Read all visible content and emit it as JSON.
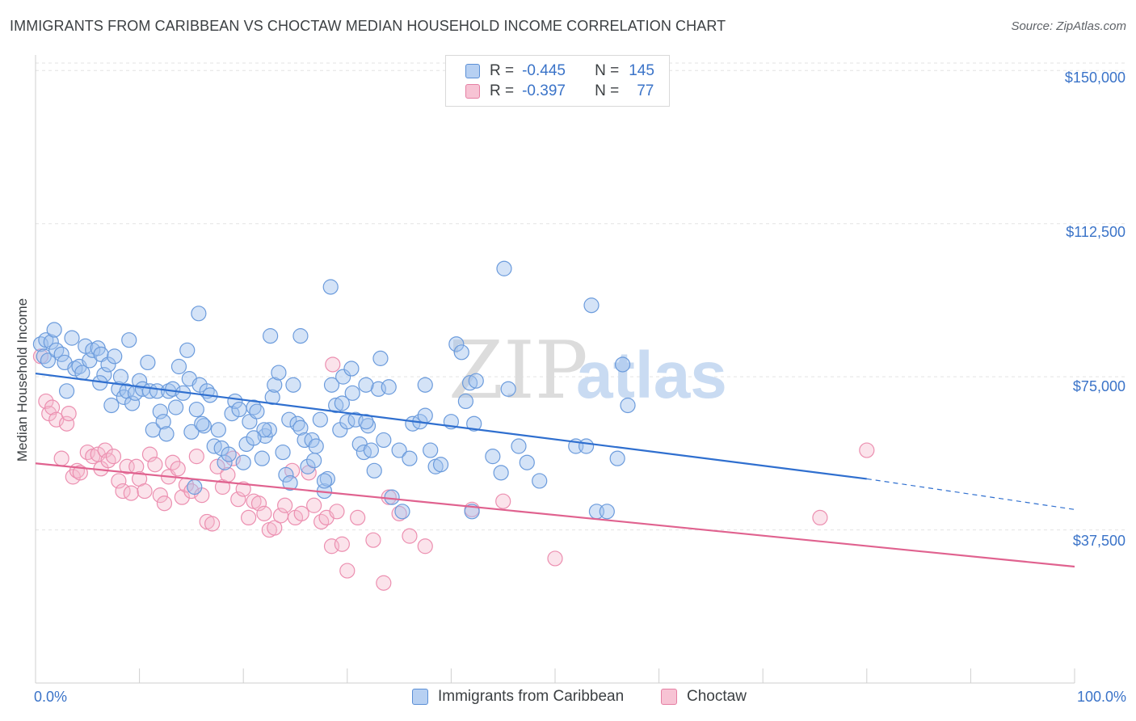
{
  "title": "IMMIGRANTS FROM CARIBBEAN VS CHOCTAW MEDIAN HOUSEHOLD INCOME CORRELATION CHART",
  "source": "Source: ZipAtlas.com",
  "watermark": {
    "zip": "ZIP",
    "atlas": "atlas"
  },
  "legend": {
    "r_label": "R =",
    "n_label": "N =",
    "rows": [
      {
        "r": "-0.445",
        "n": "145",
        "color": "#5b8fd6",
        "fill": "#b7d0f2"
      },
      {
        "r": "-0.397",
        "n": "77",
        "color": "#e57fa3",
        "fill": "#f7c3d4"
      }
    ]
  },
  "colors": {
    "blue": "#5b8fd6",
    "blue_line": "#2f6fcf",
    "pink": "#e87fa6",
    "pink_line": "#e0628f",
    "axis_text": "#3a73c8"
  },
  "chart_data": {
    "type": "scatter",
    "title": "IMMIGRANTS FROM CARIBBEAN VS CHOCTAW MEDIAN HOUSEHOLD INCOME CORRELATION CHART",
    "xlabel": "",
    "ylabel": "Median Household Income",
    "xlim": [
      0,
      100
    ],
    "ylim": [
      0,
      155000
    ],
    "x_tick_labels": [
      "0.0%",
      "100.0%"
    ],
    "y_ticks": [
      37500,
      75000,
      112500,
      150000
    ],
    "y_tick_labels": [
      "$37,500",
      "$75,000",
      "$112,500",
      "$150,000"
    ],
    "grid": "horizontal dashed",
    "series": [
      {
        "name": "Immigrants from Caribbean",
        "trend": {
          "x": [
            0,
            80
          ],
          "y": [
            75800,
            50000
          ],
          "dashed_to": [
            100,
            42500
          ]
        },
        "points": [
          [
            0.5,
            83000
          ],
          [
            0.8,
            80000
          ],
          [
            1.0,
            84000
          ],
          [
            1.2,
            79000
          ],
          [
            1.5,
            83500
          ],
          [
            1.8,
            86500
          ],
          [
            2.0,
            81500
          ],
          [
            2.5,
            80500
          ],
          [
            2.8,
            78500
          ],
          [
            3.0,
            71500
          ],
          [
            3.5,
            84500
          ],
          [
            3.8,
            77000
          ],
          [
            4.2,
            77500
          ],
          [
            4.5,
            76000
          ],
          [
            4.8,
            82500
          ],
          [
            5.2,
            79000
          ],
          [
            5.5,
            81500
          ],
          [
            6.0,
            82000
          ],
          [
            6.3,
            80500
          ],
          [
            6.6,
            75500
          ],
          [
            6.2,
            73500
          ],
          [
            7.0,
            78000
          ],
          [
            7.3,
            68000
          ],
          [
            7.6,
            80000
          ],
          [
            8.0,
            72000
          ],
          [
            8.2,
            75000
          ],
          [
            8.5,
            70000
          ],
          [
            8.8,
            71500
          ],
          [
            9.0,
            84000
          ],
          [
            9.3,
            68500
          ],
          [
            9.6,
            71000
          ],
          [
            10.0,
            74000
          ],
          [
            10.3,
            72000
          ],
          [
            10.8,
            78500
          ],
          [
            11.0,
            71500
          ],
          [
            11.3,
            62000
          ],
          [
            11.7,
            71500
          ],
          [
            12.0,
            66500
          ],
          [
            12.3,
            64000
          ],
          [
            12.8,
            71500
          ],
          [
            13.2,
            72000
          ],
          [
            13.5,
            67500
          ],
          [
            12.6,
            61000
          ],
          [
            13.8,
            77500
          ],
          [
            14.2,
            71000
          ],
          [
            14.6,
            81500
          ],
          [
            14.8,
            74500
          ],
          [
            15.0,
            61500
          ],
          [
            15.5,
            67000
          ],
          [
            15.8,
            73000
          ],
          [
            16.2,
            63000
          ],
          [
            16.5,
            71500
          ],
          [
            16.0,
            63500
          ],
          [
            15.3,
            48000
          ],
          [
            16.8,
            70500
          ],
          [
            17.2,
            58000
          ],
          [
            17.6,
            62000
          ],
          [
            17.9,
            57500
          ],
          [
            18.2,
            54000
          ],
          [
            18.6,
            56000
          ],
          [
            18.9,
            66000
          ],
          [
            19.2,
            69000
          ],
          [
            19.6,
            67000
          ],
          [
            20.0,
            54000
          ],
          [
            20.3,
            58500
          ],
          [
            20.6,
            64000
          ],
          [
            21.0,
            67500
          ],
          [
            21.3,
            66500
          ],
          [
            21.8,
            55000
          ],
          [
            22.1,
            60500
          ],
          [
            22.5,
            62000
          ],
          [
            22.8,
            70000
          ],
          [
            23.0,
            73000
          ],
          [
            23.4,
            76000
          ],
          [
            23.8,
            56500
          ],
          [
            24.1,
            51000
          ],
          [
            24.4,
            64500
          ],
          [
            24.8,
            73000
          ],
          [
            25.2,
            63500
          ],
          [
            25.5,
            62500
          ],
          [
            25.9,
            59500
          ],
          [
            26.2,
            53000
          ],
          [
            26.6,
            59500
          ],
          [
            27.0,
            58000
          ],
          [
            27.4,
            64500
          ],
          [
            27.8,
            47000
          ],
          [
            28.1,
            50000
          ],
          [
            28.5,
            73000
          ],
          [
            28.9,
            68000
          ],
          [
            29.3,
            62000
          ],
          [
            29.6,
            75000
          ],
          [
            30.0,
            64000
          ],
          [
            30.5,
            71000
          ],
          [
            30.8,
            64500
          ],
          [
            31.2,
            58500
          ],
          [
            31.6,
            56500
          ],
          [
            32.0,
            63000
          ],
          [
            32.3,
            57000
          ],
          [
            32.6,
            52000
          ],
          [
            33.0,
            72000
          ],
          [
            33.5,
            59500
          ],
          [
            34.0,
            72500
          ],
          [
            34.3,
            45500
          ],
          [
            35.0,
            57000
          ],
          [
            35.3,
            42000
          ],
          [
            36.0,
            55000
          ],
          [
            36.3,
            63500
          ],
          [
            37.0,
            64000
          ],
          [
            37.5,
            65500
          ],
          [
            38.0,
            57000
          ],
          [
            38.5,
            53000
          ],
          [
            39.0,
            53500
          ],
          [
            40.0,
            64000
          ],
          [
            40.5,
            83000
          ],
          [
            41.0,
            81000
          ],
          [
            41.4,
            69000
          ],
          [
            41.8,
            73500
          ],
          [
            42.4,
            74000
          ],
          [
            44.0,
            55500
          ],
          [
            44.8,
            51500
          ],
          [
            45.5,
            72000
          ],
          [
            46.5,
            58000
          ],
          [
            47.3,
            54000
          ],
          [
            48.5,
            49500
          ],
          [
            52.0,
            58000
          ],
          [
            53.0,
            58000
          ],
          [
            54.0,
            42000
          ],
          [
            55.0,
            42000
          ],
          [
            56.0,
            55000
          ],
          [
            56.5,
            78000
          ],
          [
            37.5,
            73000
          ],
          [
            31.8,
            73000
          ],
          [
            31.8,
            64000
          ],
          [
            26.8,
            54500
          ],
          [
            24.5,
            49000
          ],
          [
            22.0,
            62000
          ],
          [
            29.5,
            68500
          ],
          [
            53.5,
            92500
          ],
          [
            42.0,
            42000
          ],
          [
            21.0,
            60000
          ],
          [
            30.4,
            77000
          ],
          [
            33.2,
            79500
          ],
          [
            27.8,
            49500
          ],
          [
            25.5,
            85000
          ],
          [
            22.6,
            85000
          ],
          [
            28.4,
            97000
          ],
          [
            15.7,
            90500
          ],
          [
            42.2,
            63500
          ],
          [
            45.1,
            101500
          ],
          [
            57.0,
            68000
          ]
        ]
      },
      {
        "name": "Choctaw",
        "trend": {
          "x": [
            0,
            100
          ],
          "y": [
            53800,
            28500
          ]
        },
        "points": [
          [
            0.5,
            80000
          ],
          [
            1.0,
            69000
          ],
          [
            1.3,
            66000
          ],
          [
            1.6,
            67500
          ],
          [
            2.0,
            64500
          ],
          [
            2.5,
            55000
          ],
          [
            3.0,
            63500
          ],
          [
            3.2,
            66000
          ],
          [
            3.6,
            50500
          ],
          [
            4.0,
            52000
          ],
          [
            4.3,
            51500
          ],
          [
            5.0,
            56500
          ],
          [
            5.5,
            55500
          ],
          [
            6.0,
            56000
          ],
          [
            6.3,
            52500
          ],
          [
            6.7,
            57000
          ],
          [
            7.0,
            54500
          ],
          [
            7.5,
            55500
          ],
          [
            8.0,
            49500
          ],
          [
            8.4,
            47000
          ],
          [
            8.8,
            53000
          ],
          [
            9.2,
            46500
          ],
          [
            9.7,
            53000
          ],
          [
            10.0,
            50000
          ],
          [
            10.5,
            47000
          ],
          [
            11.0,
            56000
          ],
          [
            11.5,
            53500
          ],
          [
            12.0,
            46000
          ],
          [
            12.4,
            44000
          ],
          [
            12.8,
            50500
          ],
          [
            13.2,
            54000
          ],
          [
            13.7,
            52500
          ],
          [
            14.1,
            45500
          ],
          [
            14.5,
            48500
          ],
          [
            15.0,
            47000
          ],
          [
            15.5,
            55500
          ],
          [
            16.0,
            46000
          ],
          [
            16.5,
            39500
          ],
          [
            17.0,
            39000
          ],
          [
            17.5,
            53000
          ],
          [
            18.0,
            48000
          ],
          [
            18.5,
            51000
          ],
          [
            19.0,
            55000
          ],
          [
            19.5,
            45000
          ],
          [
            20.0,
            47500
          ],
          [
            20.5,
            40500
          ],
          [
            21.0,
            44500
          ],
          [
            21.5,
            44000
          ],
          [
            22.0,
            41500
          ],
          [
            22.5,
            37500
          ],
          [
            23.0,
            38000
          ],
          [
            23.6,
            41000
          ],
          [
            24.0,
            43500
          ],
          [
            24.7,
            52000
          ],
          [
            25.0,
            40500
          ],
          [
            25.6,
            41500
          ],
          [
            26.3,
            51500
          ],
          [
            26.8,
            43500
          ],
          [
            27.5,
            39500
          ],
          [
            28.0,
            40500
          ],
          [
            28.5,
            33500
          ],
          [
            29.0,
            42000
          ],
          [
            29.5,
            34000
          ],
          [
            30.0,
            27500
          ],
          [
            31.0,
            40500
          ],
          [
            32.5,
            35000
          ],
          [
            33.5,
            24500
          ],
          [
            34.0,
            45500
          ],
          [
            35.0,
            41500
          ],
          [
            36.0,
            36000
          ],
          [
            37.5,
            33500
          ],
          [
            42.0,
            42500
          ],
          [
            45.0,
            44500
          ],
          [
            50.0,
            30500
          ],
          [
            75.5,
            40500
          ],
          [
            80.0,
            57000
          ],
          [
            28.6,
            78000
          ]
        ]
      }
    ]
  },
  "bottom_legend": [
    "Immigrants from Caribbean",
    "Choctaw"
  ]
}
